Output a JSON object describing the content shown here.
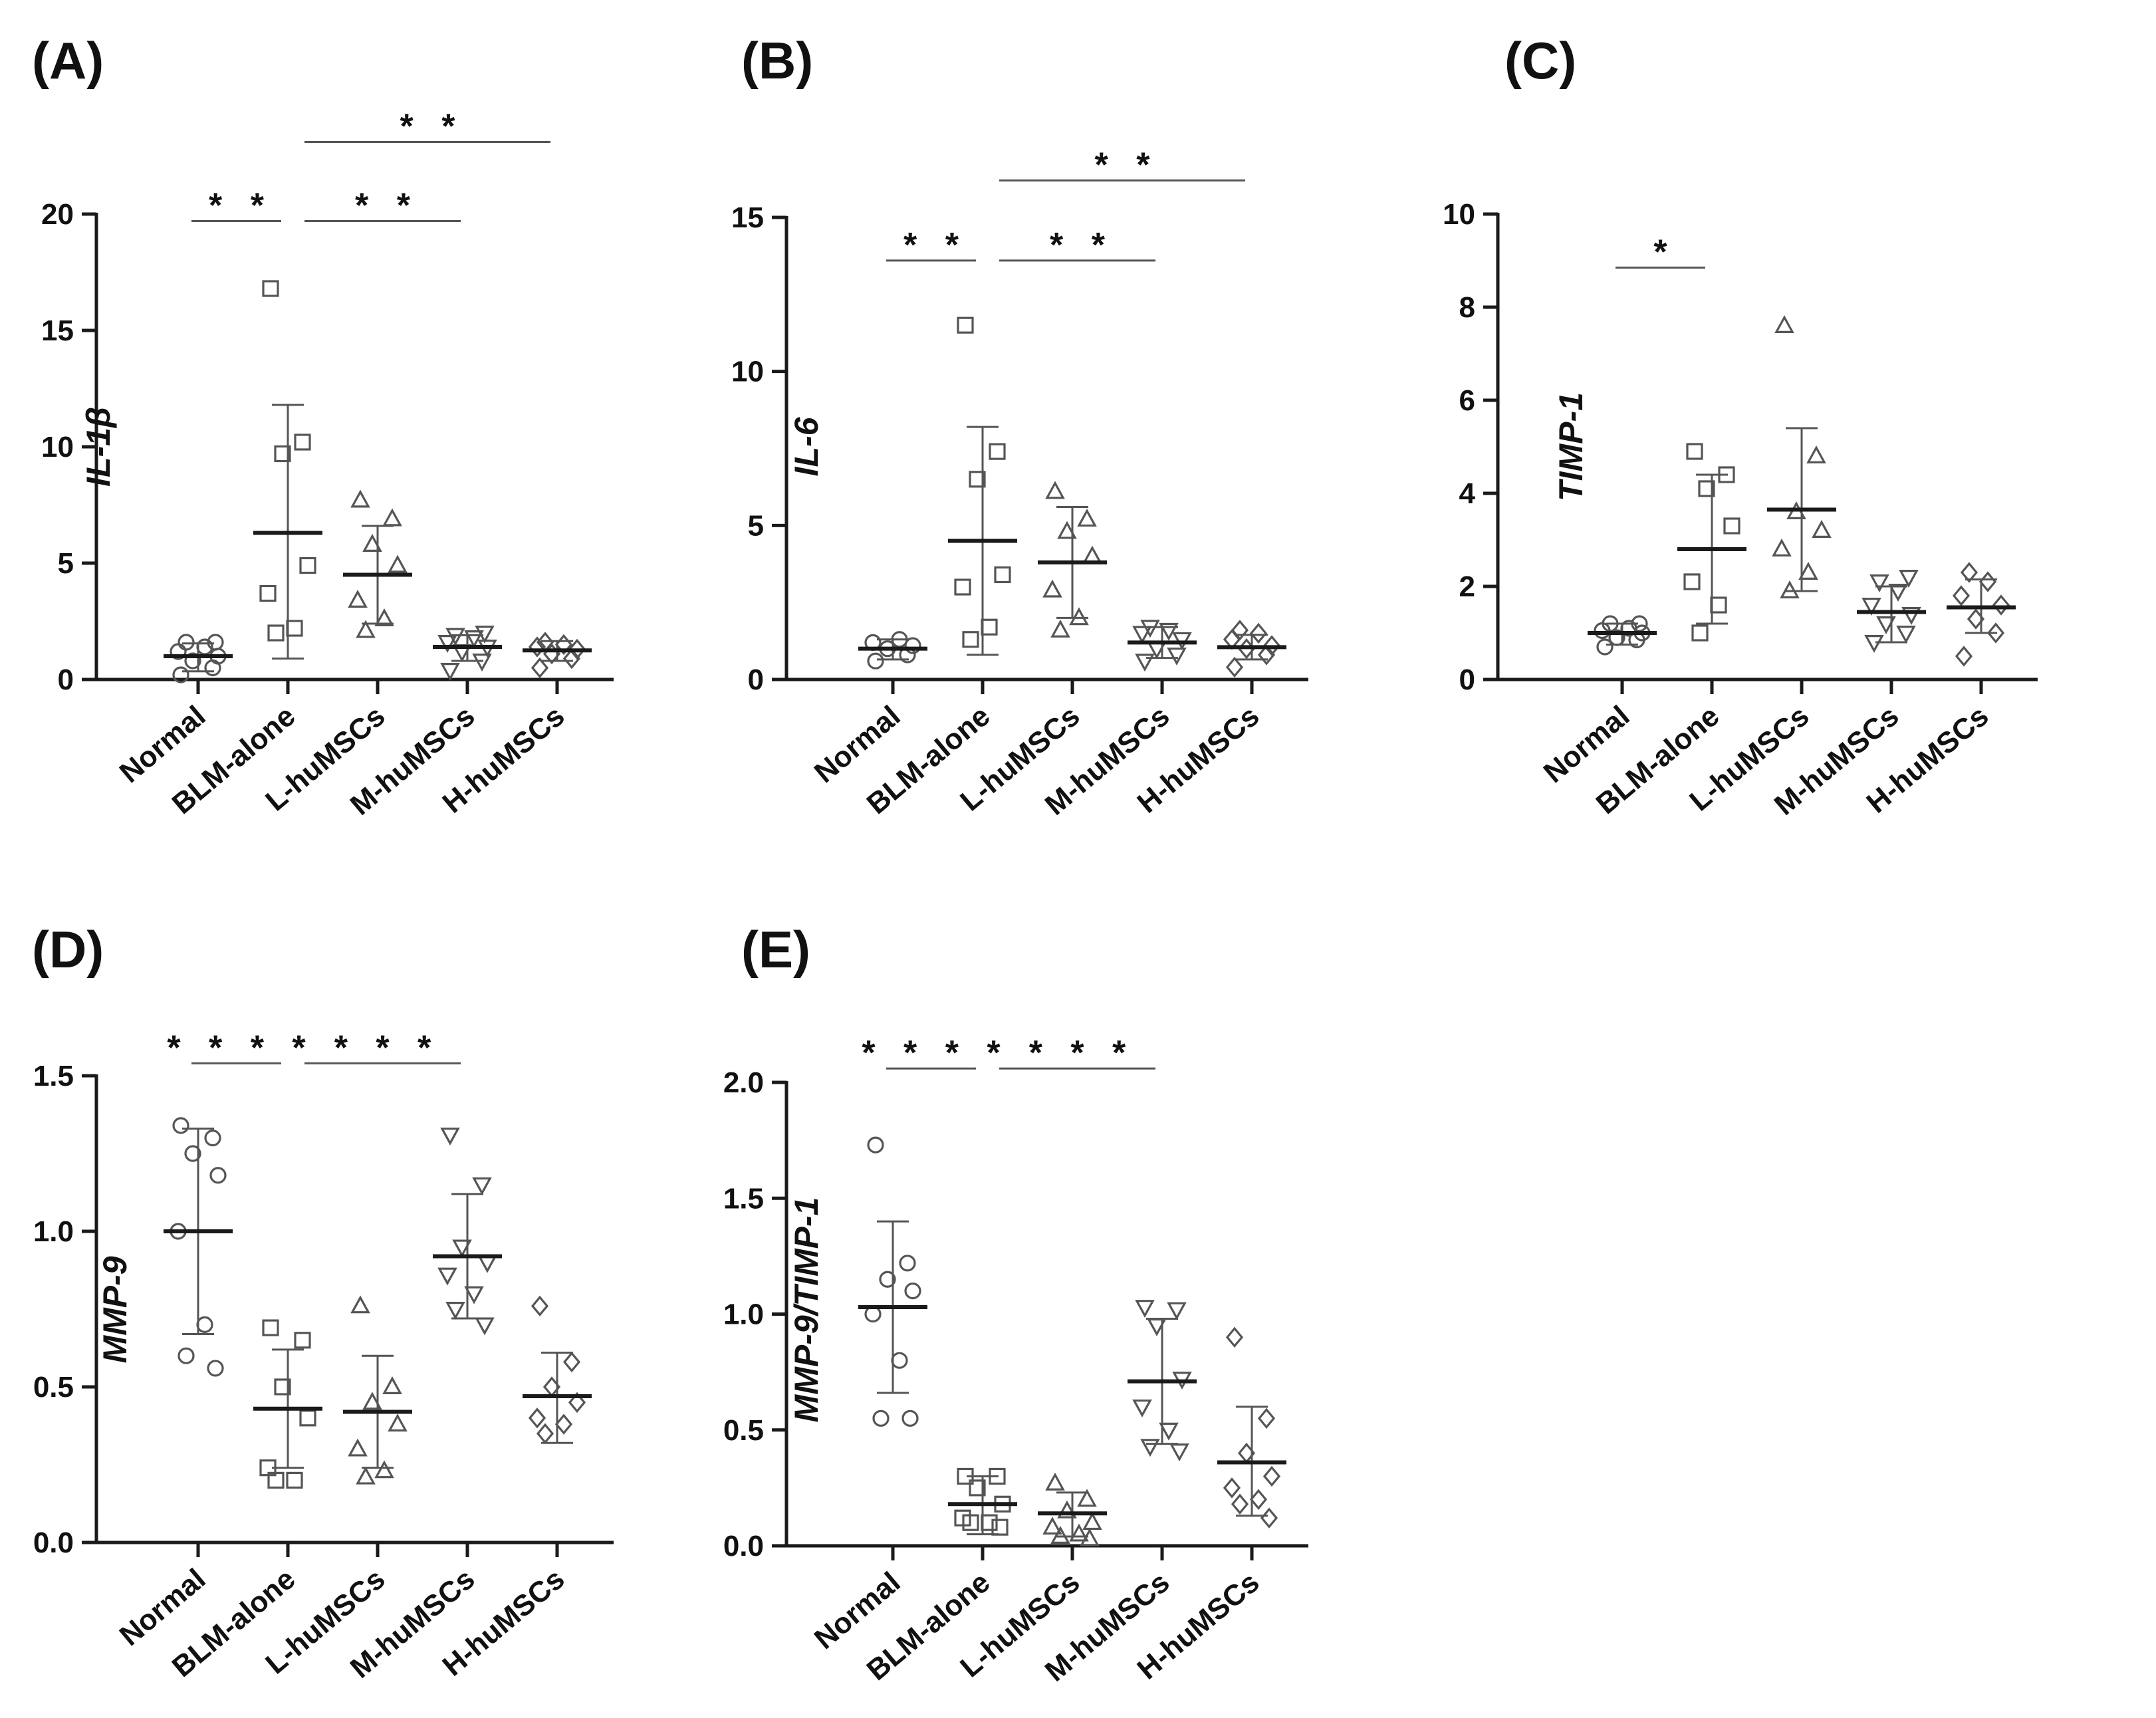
{
  "chart_data": [
    {
      "type": "scatter",
      "panel": "(A)",
      "ylabel": "IL-1β",
      "ylim": [
        0,
        20
      ],
      "yticks": [
        "0",
        "5",
        "10",
        "15",
        "20"
      ],
      "categories": [
        "Normal",
        "BLM-alone",
        "L-huMSCs",
        "M-huMSCs",
        "H-huMSCs"
      ],
      "markers": [
        "circle",
        "square",
        "triangle",
        "triangle-down",
        "diamond"
      ],
      "groups": [
        {
          "name": "Normal",
          "mean": 1.0,
          "sd_low": 0.35,
          "sd_high": 1.55,
          "points": [
            0.2,
            0.5,
            0.8,
            1.0,
            1.2,
            1.4,
            1.6,
            1.6
          ]
        },
        {
          "name": "BLM-alone",
          "mean": 6.3,
          "sd_low": 0.9,
          "sd_high": 11.8,
          "points": [
            16.8,
            10.2,
            9.7,
            4.9,
            3.7,
            2.2,
            2.0
          ]
        },
        {
          "name": "L-huMSCs",
          "mean": 4.5,
          "sd_low": 2.4,
          "sd_high": 6.6,
          "points": [
            7.7,
            6.9,
            5.8,
            4.9,
            3.4,
            2.6,
            2.1
          ]
        },
        {
          "name": "M-huMSCs",
          "mean": 1.4,
          "sd_low": 0.8,
          "sd_high": 1.9,
          "points": [
            0.4,
            0.8,
            1.2,
            1.4,
            1.6,
            1.8,
            1.9,
            2.0
          ]
        },
        {
          "name": "H-huMSCs",
          "mean": 1.25,
          "sd_low": 0.8,
          "sd_high": 1.65,
          "points": [
            0.5,
            0.9,
            1.1,
            1.3,
            1.4,
            1.5,
            1.6
          ]
        }
      ],
      "significance": [
        {
          "label": "* *",
          "from": 0,
          "to": 1,
          "y": 19.7
        },
        {
          "label": "* *",
          "from": 1,
          "to": 3,
          "y": 19.7
        },
        {
          "label": "* *",
          "from": 1,
          "to": 4,
          "y": 23.1
        }
      ]
    },
    {
      "type": "scatter",
      "panel": "(B)",
      "ylabel": "IL-6",
      "ylim": [
        0,
        15
      ],
      "yticks": [
        "0",
        "5",
        "10",
        "15"
      ],
      "categories": [
        "Normal",
        "BLM-alone",
        "L-huMSCs",
        "M-huMSCs",
        "H-huMSCs"
      ],
      "markers": [
        "circle",
        "square",
        "triangle",
        "triangle-down",
        "diamond"
      ],
      "groups": [
        {
          "name": "Normal",
          "mean": 1.0,
          "sd_low": 0.65,
          "sd_high": 1.3,
          "points": [
            0.6,
            0.8,
            1.0,
            1.1,
            1.2,
            1.3
          ]
        },
        {
          "name": "BLM-alone",
          "mean": 4.5,
          "sd_low": 0.8,
          "sd_high": 8.2,
          "points": [
            11.5,
            7.4,
            6.5,
            3.4,
            3.0,
            1.7,
            1.3
          ]
        },
        {
          "name": "L-huMSCs",
          "mean": 3.8,
          "sd_low": 2.0,
          "sd_high": 5.6,
          "points": [
            6.1,
            5.2,
            4.8,
            4.0,
            2.9,
            2.0,
            1.6
          ]
        },
        {
          "name": "M-huMSCs",
          "mean": 1.2,
          "sd_low": 0.7,
          "sd_high": 1.7,
          "points": [
            0.6,
            0.8,
            1.0,
            1.3,
            1.5,
            1.6,
            1.7
          ]
        },
        {
          "name": "H-huMSCs",
          "mean": 1.05,
          "sd_low": 0.65,
          "sd_high": 1.45,
          "points": [
            0.4,
            0.8,
            1.0,
            1.1,
            1.3,
            1.5,
            1.6
          ]
        }
      ],
      "significance": [
        {
          "label": "* *",
          "from": 0,
          "to": 1,
          "y": 13.6
        },
        {
          "label": "* *",
          "from": 1,
          "to": 3,
          "y": 13.6
        },
        {
          "label": "* *",
          "from": 1,
          "to": 4,
          "y": 16.2
        }
      ]
    },
    {
      "type": "scatter",
      "panel": "(C)",
      "ylabel": "TIMP-1",
      "ylim": [
        0,
        10
      ],
      "yticks": [
        "0",
        "2",
        "4",
        "6",
        "8",
        "10"
      ],
      "categories": [
        "Normal",
        "BLM-alone",
        "L-huMSCs",
        "M-huMSCs",
        "H-huMSCs"
      ],
      "markers": [
        "circle",
        "square",
        "triangle",
        "triangle-down",
        "diamond"
      ],
      "groups": [
        {
          "name": "Normal",
          "mean": 1.0,
          "sd_low": 0.75,
          "sd_high": 1.2,
          "points": [
            0.7,
            0.85,
            0.9,
            1.0,
            1.05,
            1.1,
            1.2,
            1.2
          ]
        },
        {
          "name": "BLM-alone",
          "mean": 2.8,
          "sd_low": 1.2,
          "sd_high": 4.4,
          "points": [
            4.9,
            4.4,
            4.1,
            3.3,
            2.1,
            1.6,
            1.0
          ]
        },
        {
          "name": "L-huMSCs",
          "mean": 3.65,
          "sd_low": 1.9,
          "sd_high": 5.4,
          "points": [
            7.6,
            4.8,
            3.6,
            3.2,
            2.8,
            2.3,
            1.9
          ]
        },
        {
          "name": "M-huMSCs",
          "mean": 1.45,
          "sd_low": 0.8,
          "sd_high": 2.0,
          "points": [
            0.8,
            1.0,
            1.2,
            1.4,
            1.6,
            1.9,
            2.1,
            2.2
          ]
        },
        {
          "name": "H-huMSCs",
          "mean": 1.55,
          "sd_low": 1.0,
          "sd_high": 2.15,
          "points": [
            0.5,
            1.0,
            1.3,
            1.6,
            1.8,
            2.1,
            2.3
          ]
        }
      ],
      "significance": [
        {
          "label": "*",
          "from": 0,
          "to": 1,
          "y": 8.85
        }
      ]
    },
    {
      "type": "scatter",
      "panel": "(D)",
      "ylabel": "MMP-9",
      "ylim": [
        0,
        1.5
      ],
      "yticks": [
        "0.0",
        "0.5",
        "1.0",
        "1.5"
      ],
      "categories": [
        "Normal",
        "BLM-alone",
        "L-huMSCs",
        "M-huMSCs",
        "H-huMSCs"
      ],
      "markers": [
        "circle",
        "square",
        "triangle",
        "triangle-down",
        "diamond"
      ],
      "groups": [
        {
          "name": "Normal",
          "mean": 1.0,
          "sd_low": 0.67,
          "sd_high": 1.33,
          "points": [
            1.34,
            1.3,
            1.25,
            1.18,
            1.0,
            0.7,
            0.6,
            0.56
          ]
        },
        {
          "name": "BLM-alone",
          "mean": 0.43,
          "sd_low": 0.24,
          "sd_high": 0.62,
          "points": [
            0.69,
            0.65,
            0.5,
            0.4,
            0.24,
            0.2,
            0.2
          ]
        },
        {
          "name": "L-huMSCs",
          "mean": 0.42,
          "sd_low": 0.24,
          "sd_high": 0.6,
          "points": [
            0.76,
            0.5,
            0.45,
            0.38,
            0.3,
            0.23,
            0.21
          ]
        },
        {
          "name": "M-huMSCs",
          "mean": 0.92,
          "sd_low": 0.72,
          "sd_high": 1.12,
          "points": [
            1.31,
            1.15,
            0.95,
            0.9,
            0.86,
            0.8,
            0.75,
            0.7
          ]
        },
        {
          "name": "H-huMSCs",
          "mean": 0.47,
          "sd_low": 0.32,
          "sd_high": 0.61,
          "points": [
            0.76,
            0.58,
            0.5,
            0.45,
            0.4,
            0.38,
            0.35
          ]
        }
      ],
      "significance": [
        {
          "label": "* * * *",
          "from": 0,
          "to": 1,
          "y": 1.54
        },
        {
          "label": "* * *",
          "from": 1,
          "to": 3,
          "y": 1.54
        }
      ]
    },
    {
      "type": "scatter",
      "panel": "(E)",
      "ylabel": "MMP-9/TIMP-1",
      "ylim": [
        0,
        2.0
      ],
      "yticks": [
        "0.0",
        "0.5",
        "1.0",
        "1.5",
        "2.0"
      ],
      "categories": [
        "Normal",
        "BLM-alone",
        "L-huMSCs",
        "M-huMSCs",
        "H-huMSCs"
      ],
      "markers": [
        "circle",
        "square",
        "triangle",
        "triangle-down",
        "diamond"
      ],
      "groups": [
        {
          "name": "Normal",
          "mean": 1.03,
          "sd_low": 0.66,
          "sd_high": 1.4,
          "points": [
            1.73,
            1.22,
            1.15,
            1.1,
            1.0,
            0.8,
            0.55,
            0.55
          ]
        },
        {
          "name": "BLM-alone",
          "mean": 0.18,
          "sd_low": 0.05,
          "sd_high": 0.3,
          "points": [
            0.3,
            0.3,
            0.25,
            0.18,
            0.12,
            0.1,
            0.1,
            0.08
          ]
        },
        {
          "name": "L-huMSCs",
          "mean": 0.14,
          "sd_low": 0.04,
          "sd_high": 0.23,
          "points": [
            0.27,
            0.2,
            0.15,
            0.1,
            0.08,
            0.05,
            0.04,
            0.03
          ]
        },
        {
          "name": "M-huMSCs",
          "mean": 0.71,
          "sd_low": 0.44,
          "sd_high": 0.98,
          "points": [
            1.03,
            1.02,
            0.95,
            0.72,
            0.6,
            0.5,
            0.43,
            0.41
          ]
        },
        {
          "name": "H-huMSCs",
          "mean": 0.36,
          "sd_low": 0.13,
          "sd_high": 0.6,
          "points": [
            0.9,
            0.55,
            0.4,
            0.3,
            0.25,
            0.2,
            0.18,
            0.12
          ]
        }
      ],
      "significance": [
        {
          "label": "* * * *",
          "from": 0,
          "to": 1,
          "y": 2.06
        },
        {
          "label": "* * *",
          "from": 1,
          "to": 3,
          "y": 2.06
        }
      ]
    }
  ]
}
